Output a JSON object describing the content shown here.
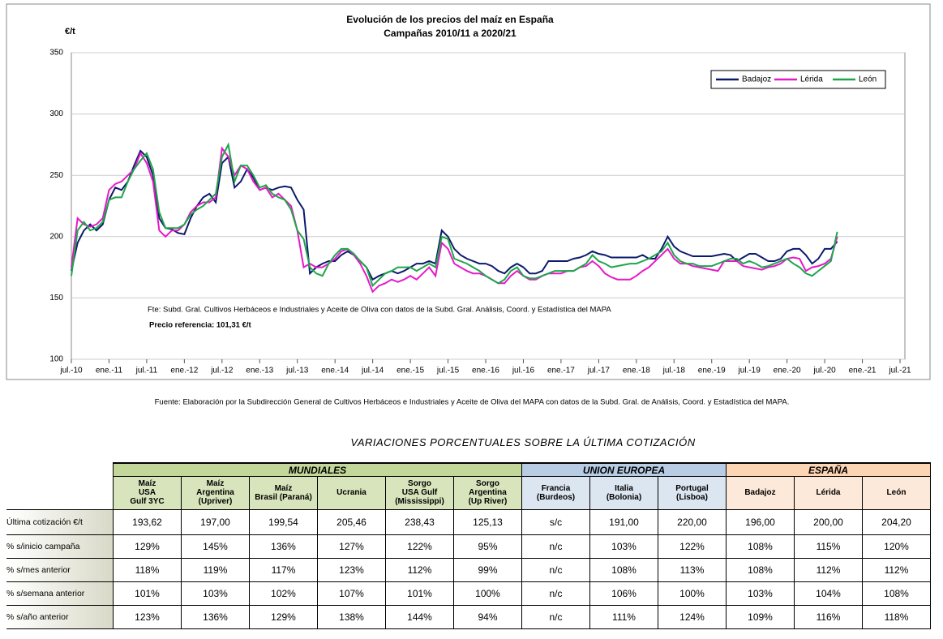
{
  "chart_data": {
    "type": "line",
    "title": "Evolución de los precios del maíz en España",
    "subtitle": "Campañas 2010/11 a 2020/21",
    "y_label": "€/t",
    "notes": [
      "Fte: Subd. Gral. Cultivos Herbáceos e Industriales y Aceite de Oliva con datos de la Subd. Gral. Análisis, Coord. y Estadística del MAPA",
      "Precio referencia: 101,31 €/t"
    ],
    "source": "Fuente: Elaboración por la Subdirección General de Cultivos Herbáceos e Industriales y Aceite de Oliva del MAPA con datos de la Subd. Gral. de Análisis, Coord. y Estadística del MAPA.",
    "grid": true,
    "legend": "upper right",
    "ylim": [
      100,
      350
    ],
    "yticks": [
      100,
      150,
      200,
      250,
      300,
      350
    ],
    "xlim": [
      "2010-07",
      "2021-07"
    ],
    "xticks": [
      {
        "value": "2010-07",
        "label": "jul.-10"
      },
      {
        "value": "2011-01",
        "label": "ene.-11"
      },
      {
        "value": "2011-07",
        "label": "jul.-11"
      },
      {
        "value": "2012-01",
        "label": "ene.-12"
      },
      {
        "value": "2012-07",
        "label": "jul.-12"
      },
      {
        "value": "2013-01",
        "label": "ene.-13"
      },
      {
        "value": "2013-07",
        "label": "jul.-13"
      },
      {
        "value": "2014-01",
        "label": "ene.-14"
      },
      {
        "value": "2014-07",
        "label": "jul.-14"
      },
      {
        "value": "2015-01",
        "label": "ene.-15"
      },
      {
        "value": "2015-07",
        "label": "jul.-15"
      },
      {
        "value": "2016-01",
        "label": "ene.-16"
      },
      {
        "value": "2016-07",
        "label": "jul.-16"
      },
      {
        "value": "2017-01",
        "label": "ene.-17"
      },
      {
        "value": "2017-07",
        "label": "jul.-17"
      },
      {
        "value": "2018-01",
        "label": "ene.-18"
      },
      {
        "value": "2018-07",
        "label": "jul.-18"
      },
      {
        "value": "2019-01",
        "label": "ene.-19"
      },
      {
        "value": "2019-07",
        "label": "jul.-19"
      },
      {
        "value": "2020-01",
        "label": "ene.-20"
      },
      {
        "value": "2020-07",
        "label": "jul.-20"
      },
      {
        "value": "2021-01",
        "label": "ene.-21"
      },
      {
        "value": "2021-07",
        "label": "jul.-21"
      }
    ],
    "x": [
      "2010-07",
      "2010-08",
      "2010-09",
      "2010-10",
      "2010-11",
      "2010-12",
      "2011-01",
      "2011-02",
      "2011-03",
      "2011-04",
      "2011-05",
      "2011-06",
      "2011-07",
      "2011-08",
      "2011-09",
      "2011-10",
      "2011-11",
      "2011-12",
      "2012-01",
      "2012-02",
      "2012-03",
      "2012-04",
      "2012-05",
      "2012-06",
      "2012-07",
      "2012-08",
      "2012-09",
      "2012-10",
      "2012-11",
      "2012-12",
      "2013-01",
      "2013-02",
      "2013-03",
      "2013-04",
      "2013-05",
      "2013-06",
      "2013-07",
      "2013-08",
      "2013-09",
      "2013-10",
      "2013-11",
      "2013-12",
      "2014-01",
      "2014-02",
      "2014-03",
      "2014-04",
      "2014-05",
      "2014-06",
      "2014-07",
      "2014-08",
      "2014-09",
      "2014-10",
      "2014-11",
      "2014-12",
      "2015-01",
      "2015-02",
      "2015-03",
      "2015-04",
      "2015-05",
      "2015-06",
      "2015-07",
      "2015-08",
      "2015-09",
      "2015-10",
      "2015-11",
      "2015-12",
      "2016-01",
      "2016-02",
      "2016-03",
      "2016-04",
      "2016-05",
      "2016-06",
      "2016-07",
      "2016-08",
      "2016-09",
      "2016-10",
      "2016-11",
      "2016-12",
      "2017-01",
      "2017-02",
      "2017-03",
      "2017-04",
      "2017-05",
      "2017-06",
      "2017-07",
      "2017-08",
      "2017-09",
      "2017-10",
      "2017-11",
      "2017-12",
      "2018-01",
      "2018-02",
      "2018-03",
      "2018-04",
      "2018-05",
      "2018-06",
      "2018-07",
      "2018-08",
      "2018-09",
      "2018-10",
      "2018-11",
      "2018-12",
      "2019-01",
      "2019-02",
      "2019-03",
      "2019-04",
      "2019-05",
      "2019-06",
      "2019-07",
      "2019-08",
      "2019-09",
      "2019-10",
      "2019-11",
      "2019-12",
      "2020-01",
      "2020-02",
      "2020-03",
      "2020-04",
      "2020-05",
      "2020-06",
      "2020-07",
      "2020-08",
      "2020-09"
    ],
    "series": [
      {
        "name": "Badajoz",
        "color": "#0d1a6b",
        "values": [
          172,
          195,
          205,
          210,
          205,
          210,
          230,
          240,
          238,
          245,
          258,
          270,
          265,
          250,
          215,
          207,
          206,
          203,
          202,
          215,
          225,
          232,
          235,
          228,
          260,
          265,
          240,
          245,
          255,
          248,
          238,
          240,
          238,
          240,
          241,
          240,
          230,
          222,
          170,
          175,
          178,
          180,
          180,
          185,
          188,
          185,
          180,
          175,
          165,
          168,
          170,
          172,
          170,
          172,
          175,
          178,
          178,
          180,
          178,
          205,
          200,
          190,
          185,
          182,
          180,
          178,
          178,
          176,
          172,
          170,
          175,
          178,
          175,
          170,
          170,
          172,
          180,
          180,
          180,
          180,
          182,
          183,
          185,
          188,
          186,
          185,
          183,
          183,
          183,
          183,
          183,
          185,
          182,
          182,
          190,
          200,
          192,
          188,
          186,
          184,
          184,
          184,
          184,
          185,
          186,
          185,
          180,
          183,
          186,
          186,
          183,
          180,
          180,
          182,
          188,
          190,
          190,
          185,
          178,
          182,
          190,
          190,
          196
        ]
      },
      {
        "name": "Lérida",
        "color": "#e619c8",
        "values": [
          175,
          215,
          210,
          208,
          210,
          215,
          238,
          243,
          245,
          250,
          255,
          268,
          260,
          245,
          205,
          200,
          205,
          205,
          210,
          220,
          225,
          228,
          228,
          232,
          272,
          265,
          250,
          258,
          255,
          245,
          238,
          240,
          232,
          235,
          230,
          225,
          205,
          175,
          178,
          175,
          175,
          178,
          182,
          188,
          190,
          185,
          178,
          168,
          155,
          160,
          162,
          165,
          163,
          165,
          168,
          165,
          170,
          175,
          168,
          195,
          190,
          178,
          175,
          172,
          170,
          170,
          168,
          165,
          162,
          162,
          168,
          172,
          168,
          165,
          165,
          168,
          170,
          170,
          170,
          172,
          172,
          175,
          176,
          180,
          176,
          170,
          167,
          165,
          165,
          165,
          168,
          172,
          175,
          180,
          185,
          190,
          182,
          178,
          178,
          176,
          175,
          174,
          173,
          172,
          180,
          180,
          180,
          176,
          175,
          174,
          173,
          175,
          176,
          178,
          182,
          183,
          182,
          172,
          175,
          176,
          178,
          182,
          200
        ]
      },
      {
        "name": "León",
        "color": "#1ea64a",
        "values": [
          168,
          205,
          212,
          205,
          207,
          212,
          230,
          232,
          232,
          245,
          255,
          262,
          268,
          255,
          220,
          207,
          207,
          207,
          210,
          218,
          222,
          225,
          230,
          235,
          265,
          275,
          245,
          258,
          258,
          250,
          240,
          242,
          235,
          232,
          230,
          222,
          205,
          198,
          175,
          170,
          168,
          178,
          185,
          190,
          190,
          186,
          180,
          175,
          160,
          165,
          170,
          172,
          175,
          175,
          175,
          172,
          175,
          178,
          175,
          200,
          198,
          182,
          180,
          178,
          175,
          172,
          168,
          165,
          162,
          165,
          172,
          175,
          168,
          166,
          166,
          168,
          170,
          172,
          172,
          172,
          172,
          175,
          178,
          185,
          180,
          178,
          175,
          176,
          177,
          178,
          178,
          180,
          182,
          185,
          188,
          195,
          185,
          180,
          178,
          178,
          176,
          176,
          176,
          178,
          180,
          182,
          182,
          178,
          180,
          178,
          175,
          176,
          178,
          180,
          182,
          178,
          175,
          170,
          168,
          172,
          176,
          180,
          204
        ]
      }
    ]
  },
  "table": {
    "title": "VARIACIONES PORCENTUALES SOBRE LA ÚLTIMA COTIZACIÓN",
    "groups": [
      {
        "label": "MUNDIALES",
        "span": 6
      },
      {
        "label": "UNION EUROPEA",
        "span": 3
      },
      {
        "label": "ESPAÑA",
        "span": 3
      }
    ],
    "columns": [
      "Maíz\nUSA\nGulf  3YC",
      "Maíz\nArgentina\n(Upriver)",
      "Maíz\nBrasil (Paraná)",
      "Ucrania",
      "Sorgo\nUSA Gulf\n(Mississippi)",
      "Sorgo\nArgentina\n(Up River)",
      "Francia\n(Burdeos)",
      "Italia\n(Bolonia)",
      "Portugal\n(Lisboa)",
      "Badajoz",
      "Lérida",
      "León"
    ],
    "rows": [
      {
        "label": "Última cotización €/t",
        "cells": [
          "193,62",
          "197,00",
          "199,54",
          "205,46",
          "238,43",
          "125,13",
          "s/c",
          "191,00",
          "220,00",
          "196,00",
          "200,00",
          "204,20"
        ]
      },
      {
        "label": "% s/inicio campaña",
        "cells": [
          "129%",
          "145%",
          "136%",
          "127%",
          "122%",
          "95%",
          "n/c",
          "103%",
          "122%",
          "108%",
          "115%",
          "120%"
        ]
      },
      {
        "label": "% s/mes anterior",
        "cells": [
          "118%",
          "119%",
          "117%",
          "123%",
          "112%",
          "99%",
          "n/c",
          "108%",
          "113%",
          "108%",
          "112%",
          "112%"
        ]
      },
      {
        "label": "% s/semana anterior",
        "cells": [
          "101%",
          "103%",
          "102%",
          "107%",
          "101%",
          "100%",
          "n/c",
          "106%",
          "100%",
          "103%",
          "104%",
          "108%"
        ]
      },
      {
        "label": "% s/año anterior",
        "cells": [
          "123%",
          "136%",
          "129%",
          "138%",
          "144%",
          "94%",
          "n/c",
          "111%",
          "124%",
          "109%",
          "116%",
          "118%"
        ]
      }
    ]
  }
}
